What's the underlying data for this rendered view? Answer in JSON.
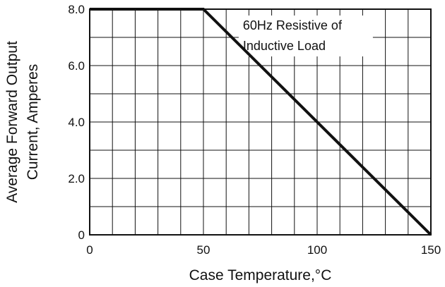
{
  "chart_data": {
    "type": "line",
    "title": "",
    "xlabel": "Case Temperature,°C",
    "ylabel_line1": "Average Forward Output",
    "ylabel_line2": "Current, Amperes",
    "xlim": [
      0,
      150
    ],
    "ylim": [
      0,
      8
    ],
    "x_ticks": [
      0,
      50,
      100,
      150
    ],
    "x_tick_labels": [
      "0",
      "50",
      "100",
      "150"
    ],
    "y_ticks": [
      0,
      2,
      4,
      6,
      8
    ],
    "y_tick_labels": [
      "0",
      "2.0",
      "4.0",
      "6.0",
      "8.0"
    ],
    "grid": true,
    "grid_x_step": 10,
    "grid_y_step": 1,
    "annotation_line1": "60Hz Resistive of",
    "annotation_line2": "Inductive Load",
    "series": [
      {
        "x": [
          0,
          50,
          150
        ],
        "y": [
          8,
          8,
          0
        ]
      }
    ]
  }
}
